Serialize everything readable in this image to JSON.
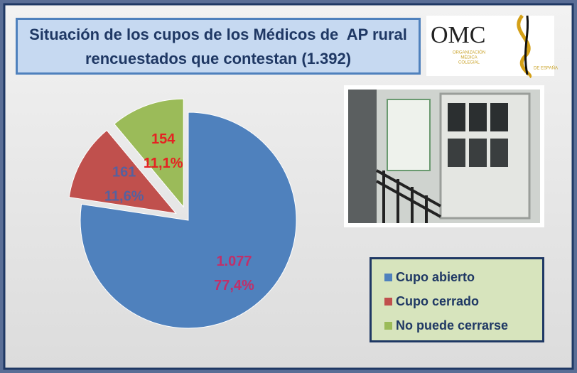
{
  "chart_data": {
    "type": "pie",
    "title": "Situación de los cupos de los Médicos de  AP rural  rencuestados que contestan (1.392)",
    "categories": [
      "Cupo abierto",
      "Cupo cerrado",
      "No puede cerrarse"
    ],
    "values": [
      1077,
      161,
      154
    ],
    "value_labels": [
      "1.077",
      "161",
      "154"
    ],
    "percentages": [
      77.4,
      11.6,
      11.1
    ],
    "percent_labels": [
      "77,4%",
      "11,6%",
      "11,1%"
    ],
    "colors": [
      "#4f81bd",
      "#c0504d",
      "#9bbb59"
    ],
    "label_colors": [
      "#c0306a",
      "#55619f",
      "#e52222"
    ],
    "explode": [
      false,
      true,
      true
    ],
    "legend": "bottom-right"
  },
  "logo": {
    "name": "OMC",
    "lines": [
      "ORGANIZACIÓN",
      "MÉDICA",
      "COLEGIAL",
      "DE ESPAÑA"
    ]
  }
}
